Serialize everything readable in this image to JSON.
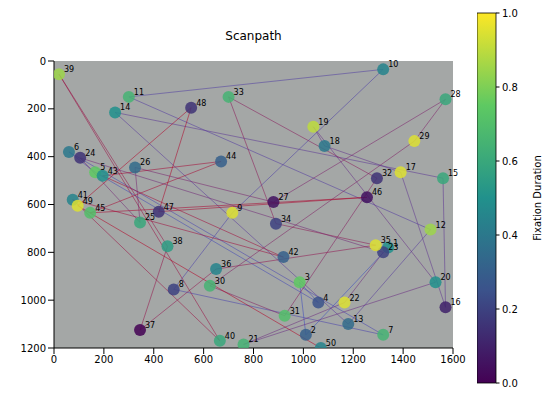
{
  "chart_data": {
    "type": "scatter",
    "title": "Scanpath",
    "x": [
      1340,
      1010,
      985,
      1060,
      165,
      60,
      1320,
      480,
      715,
      1320,
      300,
      1510,
      1180,
      245,
      1560,
      1570,
      1390,
      1085,
      1040,
      1530,
      760,
      1165,
      1320,
      105,
      345,
      325,
      880,
      1570,
      1445,
      625,
      925,
      1295,
      700,
      890,
      1290,
      650,
      345,
      455,
      20,
      665,
      75,
      920,
      195,
      670,
      145,
      1255,
      420,
      550,
      95,
      1070
    ],
    "y": [
      780,
      1145,
      925,
      1010,
      465,
      380,
      1145,
      955,
      635,
      35,
      150,
      705,
      1100,
      215,
      490,
      1030,
      465,
      355,
      275,
      925,
      1185,
      1010,
      800,
      405,
      675,
      445,
      590,
      160,
      335,
      940,
      1065,
      490,
      150,
      680,
      770,
      870,
      1125,
      775,
      55,
      1170,
      580,
      820,
      480,
      420,
      635,
      570,
      630,
      195,
      605,
      1200
    ],
    "values": [
      0.5,
      0.3,
      0.75,
      0.25,
      0.75,
      0.4,
      0.65,
      0.2,
      0.95,
      0.45,
      0.65,
      0.85,
      0.35,
      0.5,
      0.6,
      0.1,
      0.95,
      0.4,
      0.9,
      0.5,
      0.65,
      0.95,
      0.2,
      0.15,
      0.6,
      0.35,
      0.05,
      0.6,
      0.95,
      0.65,
      0.7,
      0.15,
      0.65,
      0.2,
      0.95,
      0.45,
      0.0,
      0.55,
      0.85,
      0.6,
      0.45,
      0.3,
      0.5,
      0.3,
      0.7,
      0.05,
      0.15,
      0.15,
      0.95,
      0.45
    ],
    "labels": [
      1,
      2,
      3,
      4,
      5,
      6,
      7,
      8,
      9,
      10,
      11,
      12,
      13,
      14,
      15,
      16,
      17,
      18,
      19,
      20,
      21,
      22,
      23,
      24,
      25,
      26,
      27,
      28,
      29,
      30,
      31,
      32,
      33,
      34,
      35,
      36,
      37,
      38,
      39,
      40,
      41,
      42,
      43,
      44,
      45,
      46,
      47,
      48,
      49,
      50
    ],
    "xlim": [
      0,
      1600
    ],
    "xticks": [
      0,
      200,
      400,
      600,
      800,
      1000,
      1200,
      1400,
      1600
    ],
    "ylim": [
      1200,
      0
    ],
    "yticks": [
      0,
      200,
      400,
      600,
      800,
      1000,
      1200
    ],
    "grid": false,
    "colorbar": {
      "label": "Fixation Duration",
      "range": [
        0,
        1
      ],
      "ticks": [
        {
          "value": 0,
          "label": "0.0"
        },
        {
          "value": 0.2,
          "label": "0.2"
        },
        {
          "value": 0.4,
          "label": "0.4"
        },
        {
          "value": 0.6,
          "label": "0.6"
        },
        {
          "value": 0.8,
          "label": "0.8"
        },
        {
          "value": 1,
          "label": "1.0"
        }
      ]
    }
  }
}
